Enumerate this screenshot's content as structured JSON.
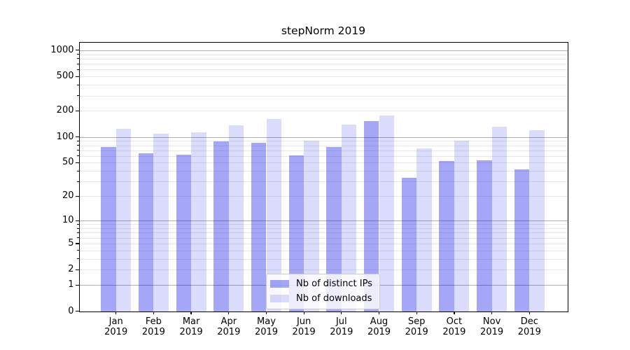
{
  "chart_data": {
    "type": "bar",
    "title": "stepNorm 2019",
    "year": "2019",
    "months": [
      "Jan",
      "Feb",
      "Mar",
      "Apr",
      "May",
      "Jun",
      "Jul",
      "Aug",
      "Sep",
      "Oct",
      "Nov",
      "Dec"
    ],
    "categories": [
      "Jan 2019",
      "Feb 2019",
      "Mar 2019",
      "Apr 2019",
      "May 2019",
      "Jun 2019",
      "Jul 2019",
      "Aug 2019",
      "Sep 2019",
      "Oct 2019",
      "Nov 2019",
      "Dec 2019"
    ],
    "series": [
      {
        "name": "Nb of distinct IPs",
        "color": "rgba(0,0,230,0.35)",
        "values": [
          77,
          65,
          62,
          89,
          86,
          61,
          77,
          152,
          33,
          52,
          53,
          42
        ]
      },
      {
        "name": "Nb of downloads",
        "color": "rgba(0,0,230,0.14)",
        "values": [
          125,
          110,
          113,
          136,
          161,
          91,
          138,
          178,
          73,
          91,
          132,
          120
        ]
      }
    ],
    "xlabel": "",
    "ylabel": "",
    "y_ticks": [
      0,
      1,
      2,
      5,
      10,
      20,
      50,
      100,
      200,
      500,
      1000
    ],
    "scale": "log1p",
    "ylim": [
      0,
      1235
    ],
    "grid": true,
    "grid_major_color": "#b0b0b0",
    "grid_minor_color": "#e8e8e8",
    "legend_position": "lower-center-inside"
  }
}
